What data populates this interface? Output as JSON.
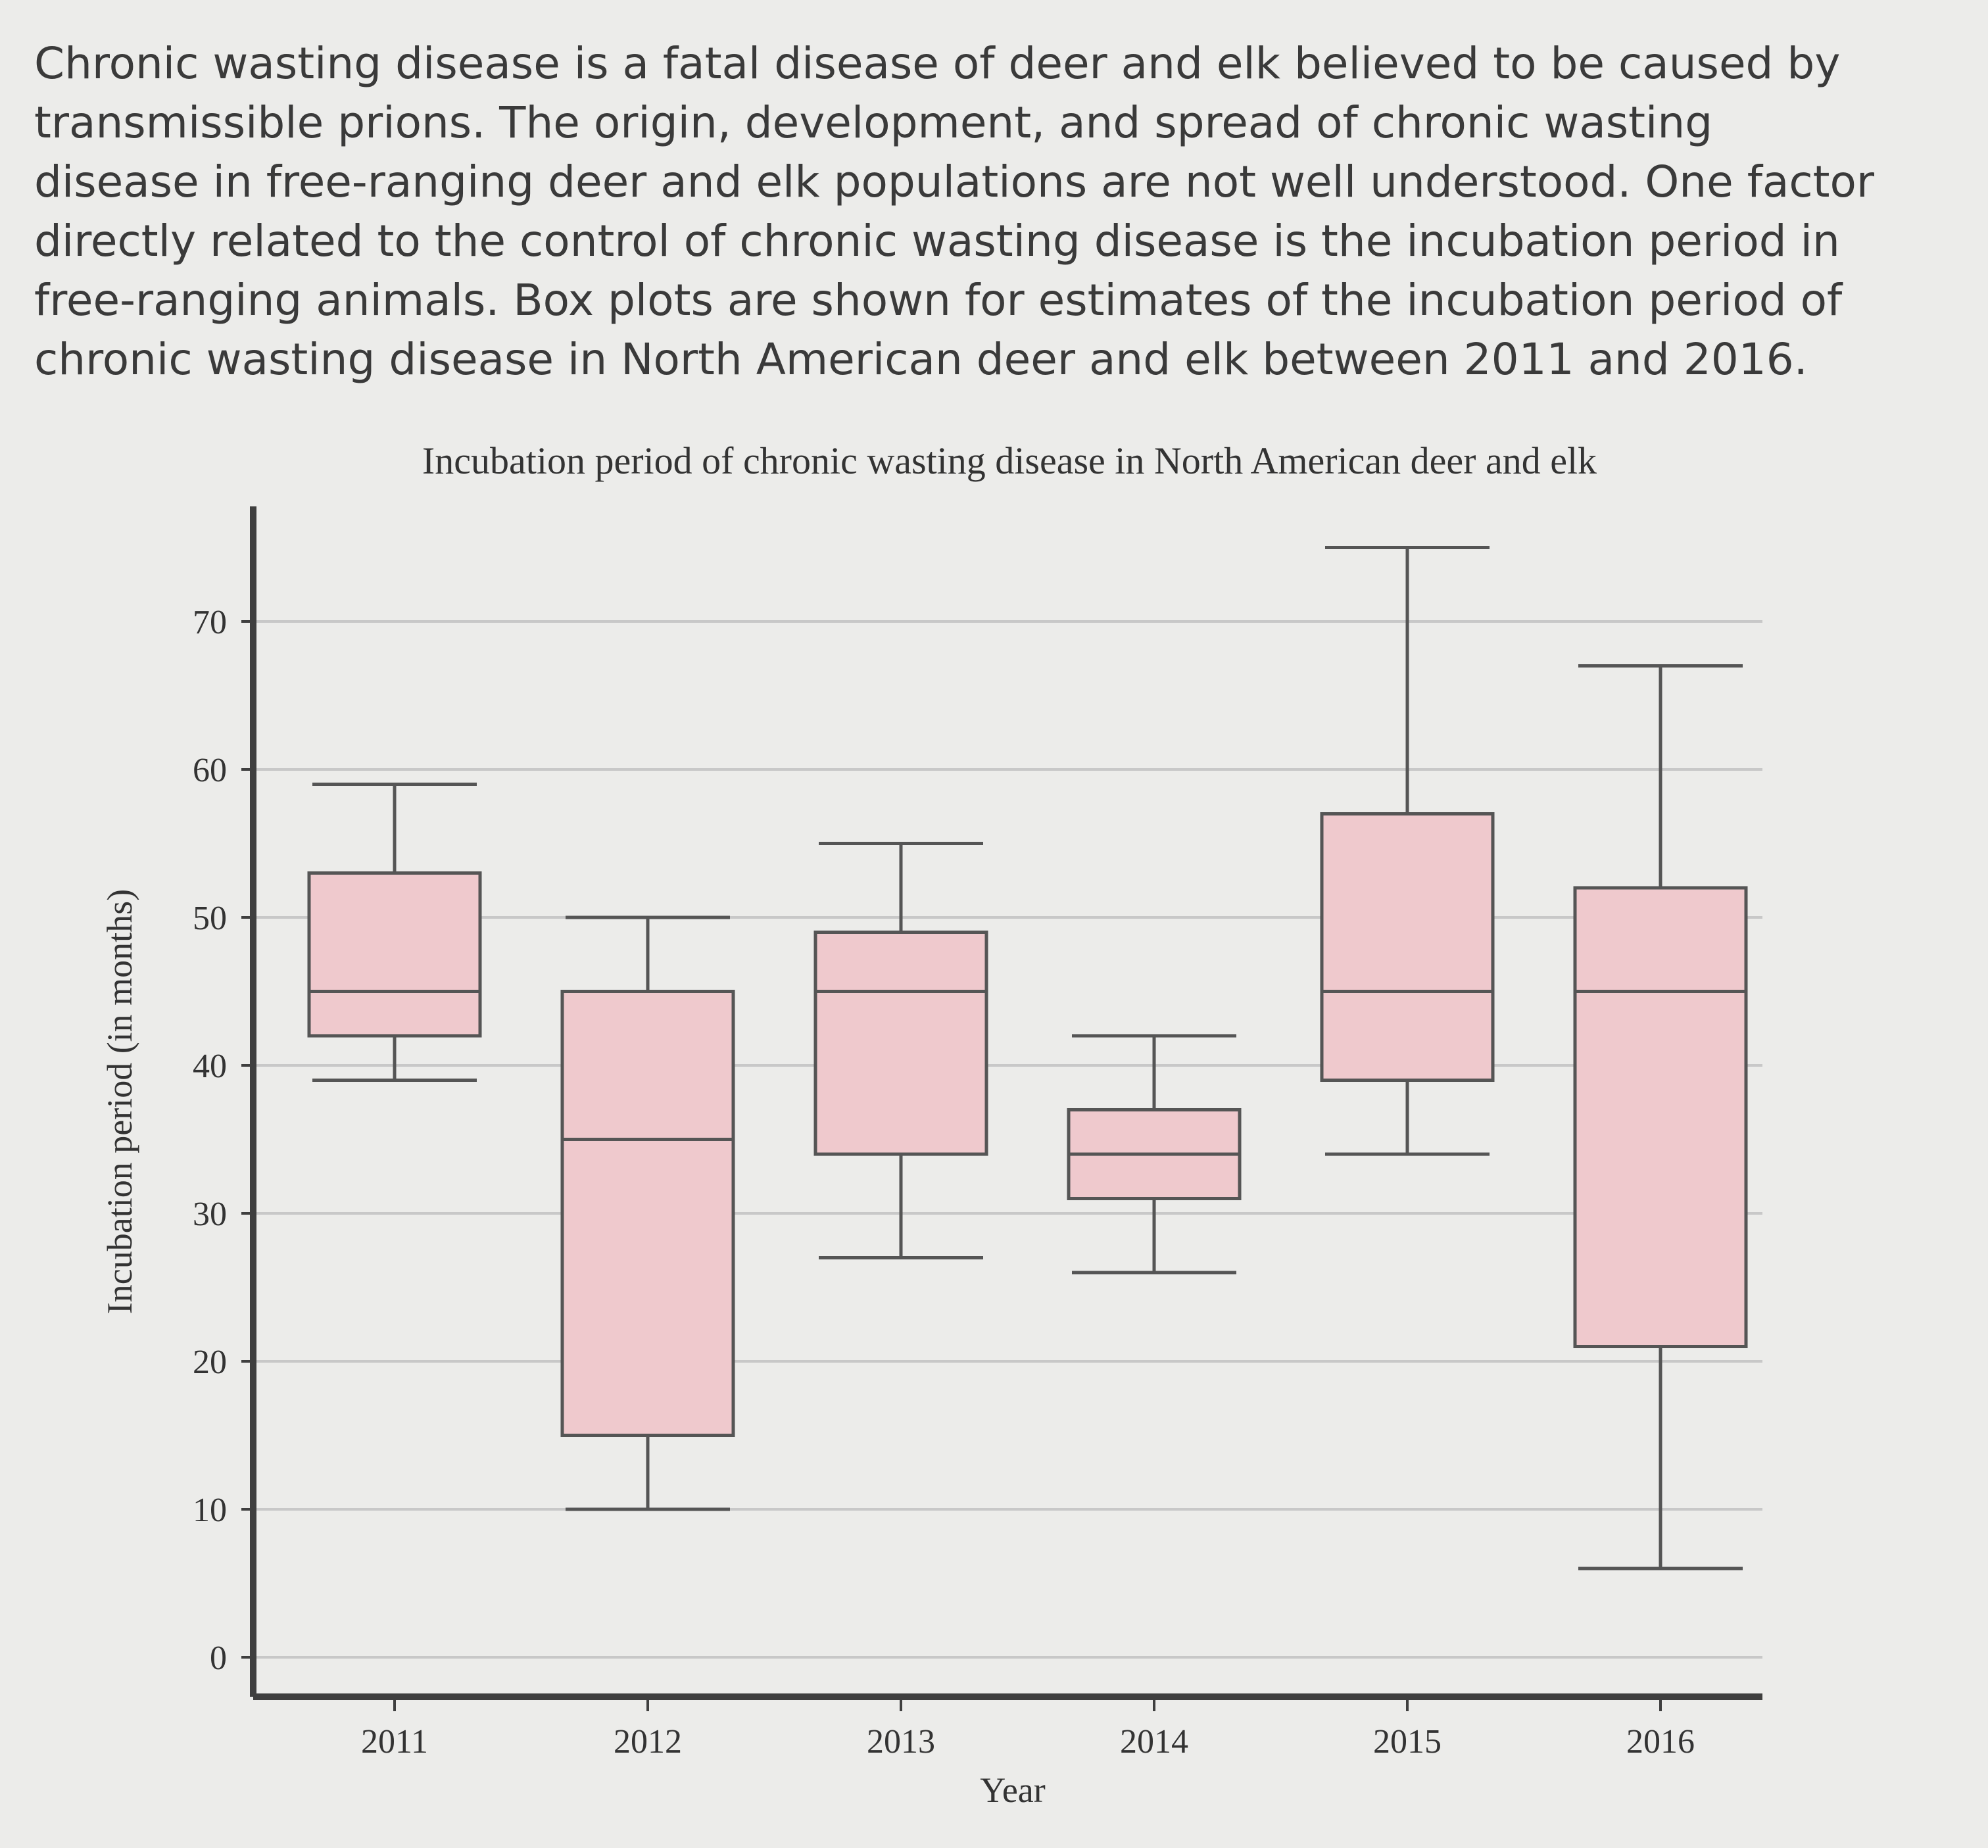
{
  "intro_text": "Chronic wasting disease is a fatal disease of deer and elk believed to be caused by transmissible prions. The origin, development, and spread of chronic wasting disease in free-ranging deer and elk populations are not well understood. One factor directly related to the control of chronic wasting disease is the incubation period in free-ranging animals. Box plots are shown for estimates of the incubation period of chronic wasting disease in North American deer and elk between 2011 and 2016.",
  "chart_data": {
    "type": "box",
    "title": "Incubation period of chronic wasting disease in North American deer and elk",
    "xlabel": "Year",
    "ylabel": "Incubation period (in months)",
    "ylim": [
      0,
      78
    ],
    "yticks": [
      0,
      10,
      20,
      30,
      40,
      50,
      60,
      70
    ],
    "grid": true,
    "categories": [
      "2011",
      "2012",
      "2013",
      "2014",
      "2015",
      "2016"
    ],
    "boxes": [
      {
        "category": "2011",
        "min": 39,
        "q1": 42,
        "median": 45,
        "q3": 53,
        "max": 59
      },
      {
        "category": "2012",
        "min": 10,
        "q1": 15,
        "median": 35,
        "q3": 45,
        "max": 50
      },
      {
        "category": "2013",
        "min": 27,
        "q1": 34,
        "median": 45,
        "q3": 49,
        "max": 55
      },
      {
        "category": "2014",
        "min": 26,
        "q1": 31,
        "median": 34,
        "q3": 37,
        "max": 42
      },
      {
        "category": "2015",
        "min": 34,
        "q1": 39,
        "median": 45,
        "q3": 57,
        "max": 75
      },
      {
        "category": "2016",
        "min": 6,
        "q1": 21,
        "median": 45,
        "q3": 52,
        "max": 67
      }
    ],
    "colors": {
      "box_fill": "#efc9cd",
      "box_stroke": "#555555",
      "grid": "#c8c8c8",
      "axis": "#3f3f3f"
    }
  }
}
